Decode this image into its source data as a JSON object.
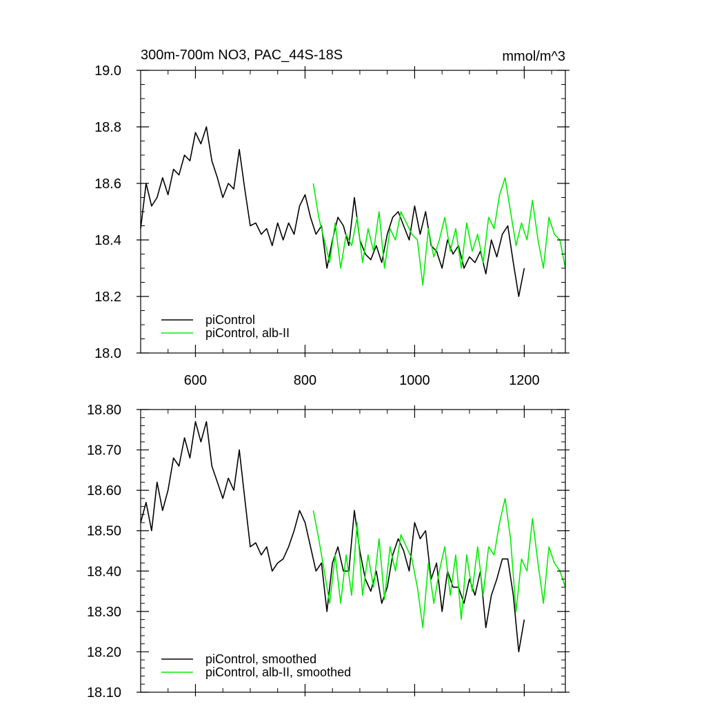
{
  "chart_data": [
    {
      "type": "line",
      "title": "300m-700m NO3, PAC_44S-18S",
      "units": "mmol/m^3",
      "xlim": [
        500,
        1275
      ],
      "ylim": [
        18.0,
        19.0
      ],
      "x_ticks": [
        600,
        800,
        1000,
        1200
      ],
      "x_tick_labels": [
        "600",
        "800",
        "1000",
        "1200"
      ],
      "y_ticks": [
        18.0,
        18.2,
        18.4,
        18.6,
        18.8,
        19.0
      ],
      "y_tick_labels": [
        "18.0",
        "18.2",
        "18.4",
        "18.6",
        "18.8",
        "19.0"
      ],
      "legend_position": "bottom-left",
      "series": [
        {
          "name": "piControl",
          "color": "#000000",
          "x": [
            500,
            510,
            520,
            530,
            540,
            550,
            560,
            570,
            580,
            590,
            600,
            610,
            620,
            630,
            640,
            650,
            660,
            670,
            680,
            690,
            700,
            710,
            720,
            730,
            740,
            750,
            760,
            770,
            780,
            790,
            800,
            810,
            820,
            830,
            840,
            850,
            860,
            870,
            880,
            890,
            900,
            910,
            920,
            930,
            940,
            950,
            960,
            970,
            980,
            990,
            1000,
            1010,
            1020,
            1030,
            1040,
            1050,
            1060,
            1070,
            1080,
            1090,
            1100,
            1110,
            1120,
            1130,
            1140,
            1150,
            1160,
            1170,
            1180,
            1190,
            1200
          ],
          "y": [
            18.44,
            18.6,
            18.52,
            18.55,
            18.62,
            18.56,
            18.65,
            18.63,
            18.7,
            18.68,
            18.78,
            18.74,
            18.8,
            18.68,
            18.62,
            18.55,
            18.6,
            18.58,
            18.72,
            18.58,
            18.45,
            18.46,
            18.42,
            18.44,
            18.38,
            18.46,
            18.4,
            18.46,
            18.42,
            18.52,
            18.56,
            18.48,
            18.42,
            18.45,
            18.3,
            18.4,
            18.48,
            18.45,
            18.38,
            18.55,
            18.4,
            18.35,
            18.33,
            18.38,
            18.32,
            18.42,
            18.48,
            18.5,
            18.45,
            18.4,
            18.52,
            18.42,
            18.5,
            18.38,
            18.36,
            18.3,
            18.4,
            18.35,
            18.38,
            18.3,
            18.34,
            18.32,
            18.36,
            18.28,
            18.4,
            18.34,
            18.42,
            18.45,
            18.32,
            18.2,
            18.3
          ]
        },
        {
          "name": "piControl, alb-II",
          "color": "#00ee00",
          "x": [
            815,
            825,
            835,
            845,
            855,
            865,
            875,
            885,
            895,
            905,
            915,
            925,
            935,
            945,
            955,
            965,
            975,
            985,
            995,
            1005,
            1015,
            1025,
            1035,
            1045,
            1055,
            1065,
            1075,
            1085,
            1095,
            1105,
            1115,
            1125,
            1135,
            1145,
            1155,
            1165,
            1175,
            1185,
            1195,
            1205,
            1215,
            1225,
            1235,
            1245,
            1255,
            1265,
            1275
          ],
          "y": [
            18.6,
            18.48,
            18.4,
            18.32,
            18.46,
            18.3,
            18.42,
            18.38,
            18.48,
            18.32,
            18.44,
            18.36,
            18.5,
            18.3,
            18.44,
            18.4,
            18.5,
            18.46,
            18.42,
            18.4,
            18.24,
            18.44,
            18.34,
            18.4,
            18.48,
            18.36,
            18.44,
            18.3,
            18.46,
            18.36,
            18.42,
            18.32,
            18.48,
            18.44,
            18.56,
            18.62,
            18.5,
            18.38,
            18.46,
            18.4,
            18.54,
            18.4,
            18.3,
            18.48,
            18.42,
            18.4,
            18.3
          ]
        }
      ]
    },
    {
      "type": "line",
      "xlim": [
        500,
        1275
      ],
      "ylim": [
        18.1,
        18.8
      ],
      "x_ticks": [
        600,
        800,
        1000,
        1200
      ],
      "y_ticks": [
        18.1,
        18.2,
        18.3,
        18.4,
        18.5,
        18.6,
        18.7,
        18.8
      ],
      "y_tick_labels": [
        "18.10",
        "18.20",
        "18.30",
        "18.40",
        "18.50",
        "18.60",
        "18.70",
        "18.80"
      ],
      "legend_position": "bottom-left",
      "series": [
        {
          "name": "piControl, smoothed",
          "color": "#000000",
          "x": [
            500,
            510,
            520,
            530,
            540,
            550,
            560,
            570,
            580,
            590,
            600,
            610,
            620,
            630,
            640,
            650,
            660,
            670,
            680,
            690,
            700,
            710,
            720,
            730,
            740,
            750,
            760,
            770,
            780,
            790,
            800,
            810,
            820,
            830,
            840,
            850,
            860,
            870,
            880,
            890,
            900,
            910,
            920,
            930,
            940,
            950,
            960,
            970,
            980,
            990,
            1000,
            1010,
            1020,
            1030,
            1040,
            1050,
            1060,
            1070,
            1080,
            1090,
            1100,
            1110,
            1120,
            1130,
            1140,
            1150,
            1160,
            1170,
            1180,
            1190,
            1200
          ],
          "y": [
            18.52,
            18.57,
            18.5,
            18.62,
            18.55,
            18.6,
            18.68,
            18.66,
            18.73,
            18.68,
            18.77,
            18.72,
            18.77,
            18.66,
            18.62,
            18.58,
            18.63,
            18.6,
            18.7,
            18.58,
            18.46,
            18.47,
            18.44,
            18.46,
            18.4,
            18.42,
            18.43,
            18.46,
            18.5,
            18.55,
            18.52,
            18.46,
            18.4,
            18.42,
            18.3,
            18.42,
            18.46,
            18.4,
            18.4,
            18.55,
            18.45,
            18.38,
            18.35,
            18.4,
            18.32,
            18.36,
            18.44,
            18.48,
            18.45,
            18.4,
            18.52,
            18.48,
            18.5,
            18.38,
            18.42,
            18.3,
            18.4,
            18.36,
            18.36,
            18.32,
            18.38,
            18.34,
            18.4,
            18.26,
            18.34,
            18.38,
            18.43,
            18.43,
            18.34,
            18.2,
            18.28
          ]
        },
        {
          "name": "piControl, alb-II, smoothed",
          "color": "#00ee00",
          "x": [
            815,
            825,
            835,
            845,
            855,
            865,
            875,
            885,
            895,
            905,
            915,
            925,
            935,
            945,
            955,
            965,
            975,
            985,
            995,
            1005,
            1015,
            1025,
            1035,
            1045,
            1055,
            1065,
            1075,
            1085,
            1095,
            1105,
            1115,
            1125,
            1135,
            1145,
            1155,
            1165,
            1175,
            1185,
            1195,
            1205,
            1215,
            1225,
            1235,
            1245,
            1255,
            1265,
            1275
          ],
          "y": [
            18.55,
            18.48,
            18.4,
            18.32,
            18.44,
            18.32,
            18.44,
            18.34,
            18.52,
            18.34,
            18.44,
            18.36,
            18.48,
            18.33,
            18.46,
            18.4,
            18.49,
            18.46,
            18.43,
            18.36,
            18.26,
            18.42,
            18.32,
            18.4,
            18.46,
            18.34,
            18.44,
            18.28,
            18.44,
            18.35,
            18.46,
            18.34,
            18.46,
            18.44,
            18.52,
            18.58,
            18.48,
            18.3,
            18.43,
            18.4,
            18.53,
            18.42,
            18.32,
            18.46,
            18.42,
            18.4,
            18.36
          ]
        }
      ]
    }
  ]
}
